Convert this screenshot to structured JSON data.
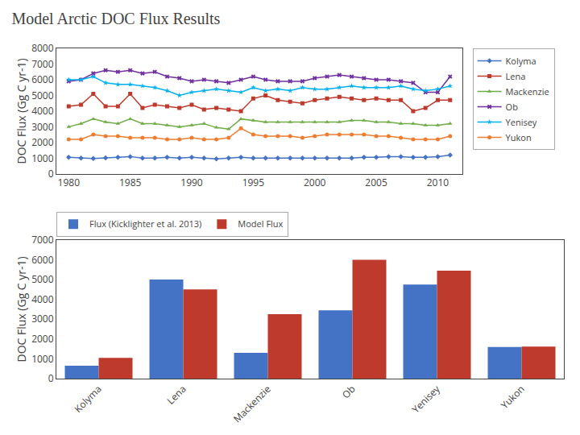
{
  "chart_data": [
    {
      "type": "line",
      "title": "Model Arctic DOC Flux Results",
      "x": [
        1980,
        1981,
        1982,
        1983,
        1984,
        1985,
        1986,
        1987,
        1988,
        1989,
        1990,
        1991,
        1992,
        1993,
        1994,
        1995,
        1996,
        1997,
        1998,
        1999,
        2000,
        2001,
        2002,
        2003,
        2004,
        2005,
        2006,
        2007,
        2008,
        2009,
        2010,
        2011
      ],
      "series": [
        {
          "name": "Kolyma",
          "color": "#4472c4",
          "marker": "diamond",
          "values": [
            1050,
            1000,
            980,
            1020,
            1050,
            1100,
            1000,
            1000,
            1050,
            1000,
            1050,
            1000,
            950,
            1000,
            1050,
            1000,
            1000,
            1000,
            1000,
            1000,
            1000,
            1000,
            1000,
            1000,
            1050,
            1050,
            1100,
            1100,
            1050,
            1050,
            1100,
            1200
          ]
        },
        {
          "name": "Lena",
          "color": "#be3a2d",
          "marker": "square",
          "values": [
            4300,
            4400,
            5100,
            4300,
            4300,
            5100,
            4200,
            4400,
            4300,
            4200,
            4400,
            4100,
            4200,
            4100,
            4000,
            4800,
            5000,
            4700,
            4600,
            4500,
            4700,
            4800,
            4900,
            4800,
            4700,
            4800,
            4700,
            4700,
            4000,
            4200,
            4700,
            4700
          ]
        },
        {
          "name": "Mackenzie",
          "color": "#70ad47",
          "marker": "triangle-up",
          "values": [
            3000,
            3200,
            3500,
            3300,
            3200,
            3500,
            3200,
            3200,
            3100,
            3000,
            3100,
            3200,
            2950,
            2850,
            3500,
            3400,
            3300,
            3300,
            3300,
            3300,
            3300,
            3300,
            3300,
            3400,
            3400,
            3300,
            3300,
            3200,
            3200,
            3100,
            3100,
            3200
          ]
        },
        {
          "name": "Ob",
          "color": "#7030a0",
          "marker": "x",
          "values": [
            5900,
            6000,
            6400,
            6600,
            6500,
            6600,
            6400,
            6500,
            6200,
            6100,
            5900,
            6000,
            5900,
            5800,
            6000,
            6200,
            6000,
            5900,
            5900,
            5900,
            6100,
            6200,
            6300,
            6200,
            6100,
            6000,
            6000,
            5900,
            5800,
            5200,
            5200,
            6200
          ]
        },
        {
          "name": "Yenisey",
          "color": "#00b0f0",
          "marker": "star",
          "values": [
            6000,
            6000,
            6200,
            5800,
            5700,
            5700,
            5600,
            5500,
            5300,
            5000,
            5200,
            5300,
            5400,
            5300,
            5200,
            5500,
            5300,
            5400,
            5300,
            5500,
            5400,
            5400,
            5500,
            5600,
            5500,
            5500,
            5500,
            5600,
            5400,
            5300,
            5400,
            5600
          ]
        },
        {
          "name": "Yukon",
          "color": "#ed7d31",
          "marker": "circle",
          "values": [
            2200,
            2200,
            2500,
            2400,
            2400,
            2300,
            2300,
            2300,
            2200,
            2200,
            2300,
            2200,
            2200,
            2300,
            2900,
            2500,
            2400,
            2400,
            2400,
            2300,
            2400,
            2500,
            2500,
            2500,
            2500,
            2400,
            2400,
            2300,
            2200,
            2200,
            2200,
            2400
          ]
        }
      ],
      "ylabel": "DOC Flux (Gg C yr-1)",
      "xlim": [
        1979,
        2012
      ],
      "xticks": [
        1980,
        1985,
        1990,
        1995,
        2000,
        2005,
        2010
      ],
      "ylim": [
        0,
        8000
      ],
      "yticks": [
        0,
        1000,
        2000,
        3000,
        4000,
        5000,
        6000,
        7000,
        8000
      ],
      "grid": false,
      "legend": "right"
    },
    {
      "type": "bar",
      "categories": [
        "Kolyma",
        "Lena",
        "Mackenzie",
        "Ob",
        "Yenisey",
        "Yukon"
      ],
      "series": [
        {
          "name": "Flux (Kicklighter et al. 2013)",
          "color": "#4472c4",
          "values": [
            650,
            5000,
            1300,
            3450,
            4750,
            1600
          ]
        },
        {
          "name": "Model Flux",
          "color": "#be3a2d",
          "values": [
            1050,
            4500,
            3250,
            6000,
            5450,
            1620
          ]
        }
      ],
      "ylabel": "DOC Flux (Gg C yr-1)",
      "ylim": [
        0,
        7000
      ],
      "yticks": [
        0,
        1000,
        2000,
        3000,
        4000,
        5000,
        6000,
        7000
      ],
      "grid": false,
      "legend": "upper left"
    }
  ]
}
